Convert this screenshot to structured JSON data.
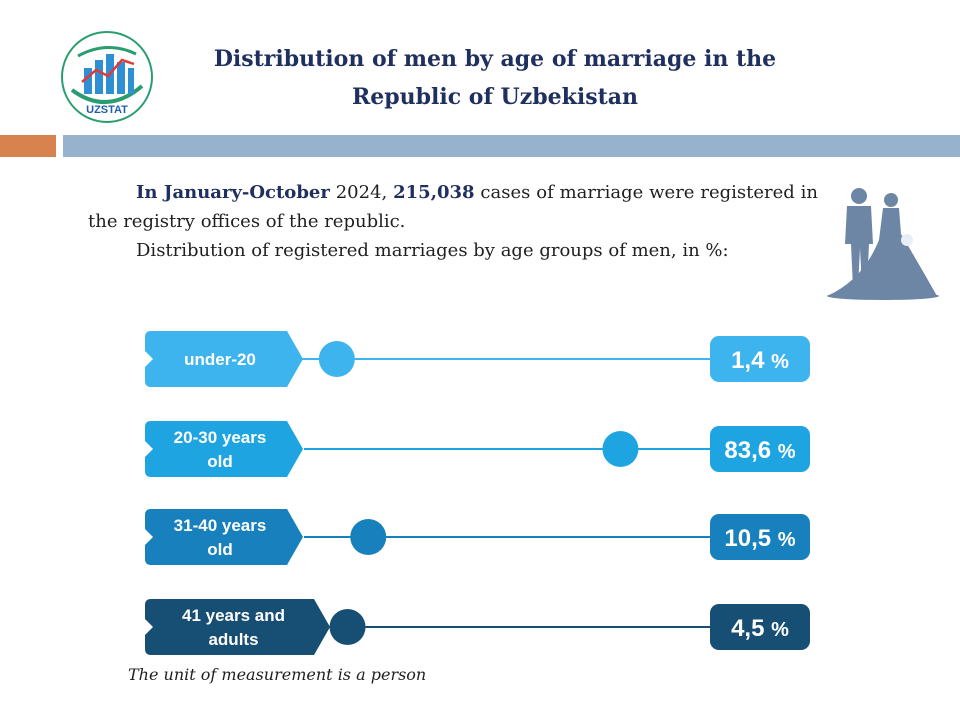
{
  "logo": {
    "text": "UZSTAT",
    "icon": "bar-chart-growth-icon"
  },
  "title": {
    "line1": "Distribution of men by age of marriage in the",
    "line2": "Republic of Uzbekistan"
  },
  "intro": {
    "p1_bold1": "In January-October",
    "p1_rest1": " 2024, ",
    "p1_bold2": "215,038",
    "p1_rest2": " cases of marriage were registered in the registry offices of the republic.",
    "p2": "Distribution of registered marriages by age groups of men, in %:"
  },
  "illustration": "bride-and-groom-icon",
  "chart_data": {
    "type": "bar",
    "unit": "%",
    "categories": [
      [
        "under-20"
      ],
      [
        "20-30 years",
        "old"
      ],
      [
        "31-40 years",
        "old"
      ],
      [
        "41 years and",
        "adults"
      ]
    ],
    "value_labels": [
      "1,4",
      "83,6",
      "10,5",
      "4,5"
    ],
    "values": [
      1.4,
      83.6,
      10.5,
      4.5
    ],
    "colors": [
      "#3db4ee",
      "#1fa4e2",
      "#1780bd",
      "#174e73"
    ]
  },
  "footnote": "The unit of measurement is a person"
}
